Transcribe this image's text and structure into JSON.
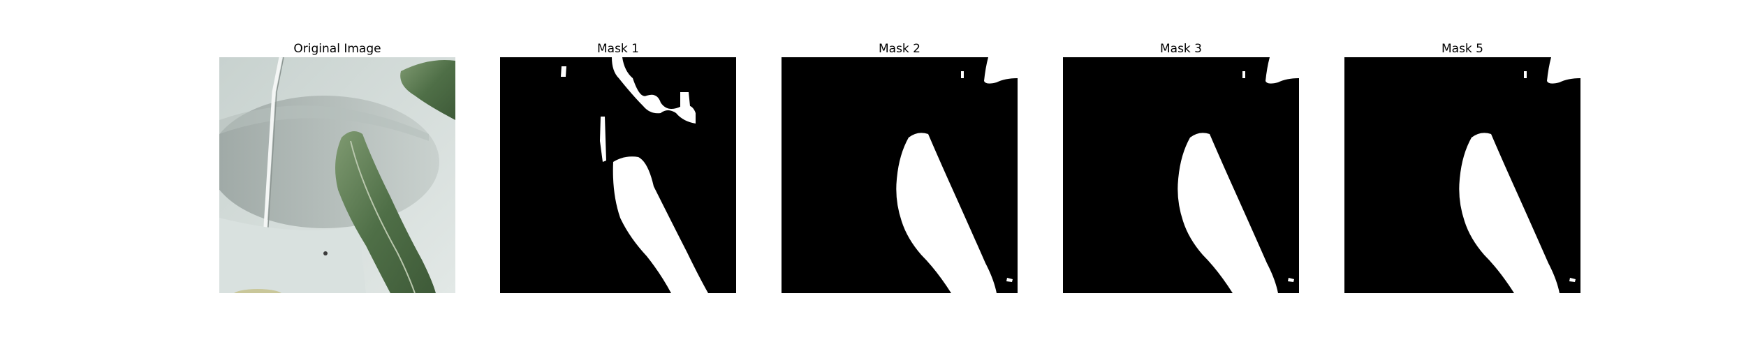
{
  "figure": {
    "panels": [
      {
        "title": "Original Image",
        "kind": "photo"
      },
      {
        "title": "Mask 1",
        "kind": "mask"
      },
      {
        "title": "Mask 2",
        "kind": "mask"
      },
      {
        "title": "Mask 3",
        "kind": "mask"
      },
      {
        "title": "Mask 5",
        "kind": "mask"
      }
    ]
  },
  "colors": {
    "background": "#ffffff",
    "mask_background": "#000000",
    "mask_foreground": "#ffffff",
    "photo_backdrop": "#d2dbd8",
    "bowl": "#a9b3b0",
    "leaf_dark": "#4f6f47",
    "leaf_light": "#9fb18f"
  }
}
